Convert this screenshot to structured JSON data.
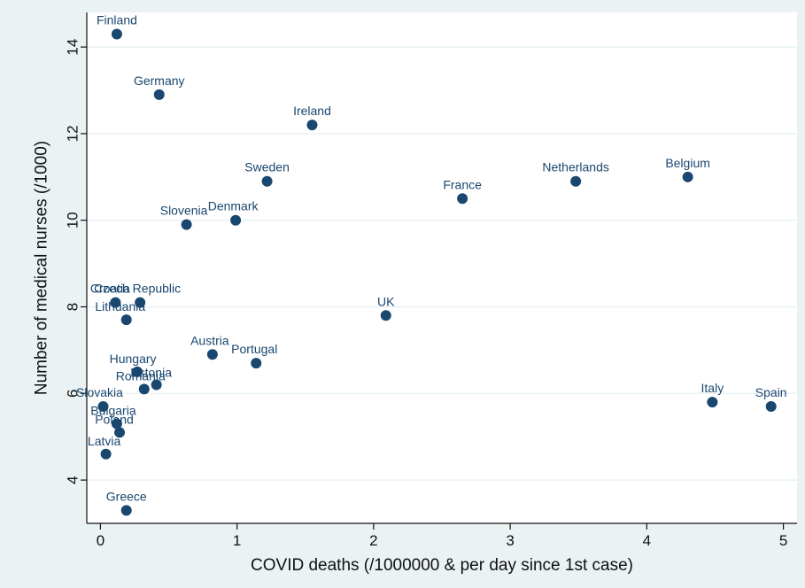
{
  "chart_data": {
    "type": "scatter",
    "xlabel": "COVID deaths (/1000000 & per day since 1st case)",
    "ylabel": "Number of medical nurses (/1000)",
    "xlim": [
      -0.1,
      5.1
    ],
    "ylim": [
      3.0,
      14.8
    ],
    "xticks": [
      0,
      1,
      2,
      3,
      4,
      5
    ],
    "yticks": [
      4,
      6,
      8,
      10,
      12,
      14
    ],
    "grid": true,
    "colors": {
      "outer_background": "#eaf2f3",
      "plot_background": "#ffffff",
      "marker": "#1a476f",
      "label": "#1a476f",
      "grid": "#eaf2f3"
    },
    "points": [
      {
        "label": "Finland",
        "x": 0.12,
        "y": 14.3
      },
      {
        "label": "Germany",
        "x": 0.43,
        "y": 12.9
      },
      {
        "label": "Ireland",
        "x": 1.55,
        "y": 12.2
      },
      {
        "label": "Sweden",
        "x": 1.22,
        "y": 10.9
      },
      {
        "label": "France",
        "x": 2.65,
        "y": 10.5
      },
      {
        "label": "Netherlands",
        "x": 3.48,
        "y": 10.9
      },
      {
        "label": "Belgium",
        "x": 4.3,
        "y": 11.0
      },
      {
        "label": "Slovenia",
        "x": 0.63,
        "y": 9.9
      },
      {
        "label": "Denmark",
        "x": 0.99,
        "y": 10.0
      },
      {
        "label": "Croatia",
        "x": 0.11,
        "y": 8.1
      },
      {
        "label": "Czech Republic",
        "x": 0.29,
        "y": 8.1
      },
      {
        "label": "Lithuania",
        "x": 0.19,
        "y": 7.7
      },
      {
        "label": "UK",
        "x": 2.09,
        "y": 7.8
      },
      {
        "label": "Austria",
        "x": 0.82,
        "y": 6.9
      },
      {
        "label": "Portugal",
        "x": 1.14,
        "y": 6.7
      },
      {
        "label": "Hungary",
        "x": 0.27,
        "y": 6.5
      },
      {
        "label": "Estonia",
        "x": 0.41,
        "y": 6.2
      },
      {
        "label": "Romania",
        "x": 0.32,
        "y": 6.1
      },
      {
        "label": "Slovakia",
        "x": 0.02,
        "y": 5.7
      },
      {
        "label": "Bulgaria",
        "x": 0.12,
        "y": 5.3
      },
      {
        "label": "Poland",
        "x": 0.14,
        "y": 5.1
      },
      {
        "label": "Latvia",
        "x": 0.04,
        "y": 4.6
      },
      {
        "label": "Greece",
        "x": 0.19,
        "y": 3.3
      },
      {
        "label": "Italy",
        "x": 4.48,
        "y": 5.8
      },
      {
        "label": "Spain",
        "x": 4.91,
        "y": 5.7
      }
    ]
  }
}
